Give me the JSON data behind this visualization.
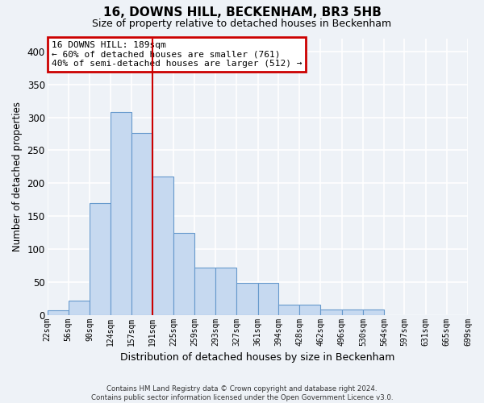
{
  "title": "16, DOWNS HILL, BECKENHAM, BR3 5HB",
  "subtitle": "Size of property relative to detached houses in Beckenham",
  "xlabel": "Distribution of detached houses by size in Beckenham",
  "ylabel": "Number of detached properties",
  "bin_edges": [
    22,
    56,
    90,
    124,
    157,
    191,
    225,
    259,
    293,
    327,
    361,
    394,
    428,
    462,
    496,
    530,
    564,
    597,
    631,
    665,
    699
  ],
  "bar_heights": [
    7,
    22,
    170,
    308,
    276,
    210,
    125,
    72,
    72,
    48,
    48,
    15,
    15,
    8,
    8,
    8,
    0,
    0,
    0,
    0
  ],
  "bar_color": "#c6d9f0",
  "bar_edgecolor": "#6699cc",
  "property_line_x": 191,
  "ylim": [
    0,
    420
  ],
  "yticks": [
    0,
    50,
    100,
    150,
    200,
    250,
    300,
    350,
    400
  ],
  "annotation_text": "16 DOWNS HILL: 189sqm\n← 60% of detached houses are smaller (761)\n40% of semi-detached houses are larger (512) →",
  "annotation_box_color": "#cc0000",
  "footer_line1": "Contains HM Land Registry data © Crown copyright and database right 2024.",
  "footer_line2": "Contains public sector information licensed under the Open Government Licence v3.0.",
  "background_color": "#eef2f7",
  "grid_color": "#ffffff",
  "title_fontsize": 11,
  "subtitle_fontsize": 9
}
